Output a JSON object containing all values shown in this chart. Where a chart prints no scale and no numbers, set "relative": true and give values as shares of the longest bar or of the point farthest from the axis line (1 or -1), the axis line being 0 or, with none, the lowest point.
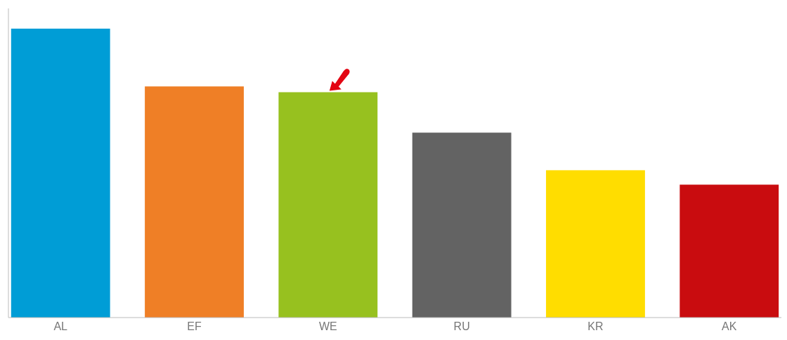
{
  "chart_data": {
    "type": "bar",
    "relative": true,
    "categories": [
      "AL",
      "EF",
      "WE",
      "RU",
      "KR",
      "AK"
    ],
    "values": [
      1,
      0.8,
      0.78,
      0.64,
      0.51,
      0.46
    ],
    "colors": [
      "#009dd6",
      "#ef7f26",
      "#97c11f",
      "#636363",
      "#ffdd00",
      "#c90c0f"
    ]
  }
}
